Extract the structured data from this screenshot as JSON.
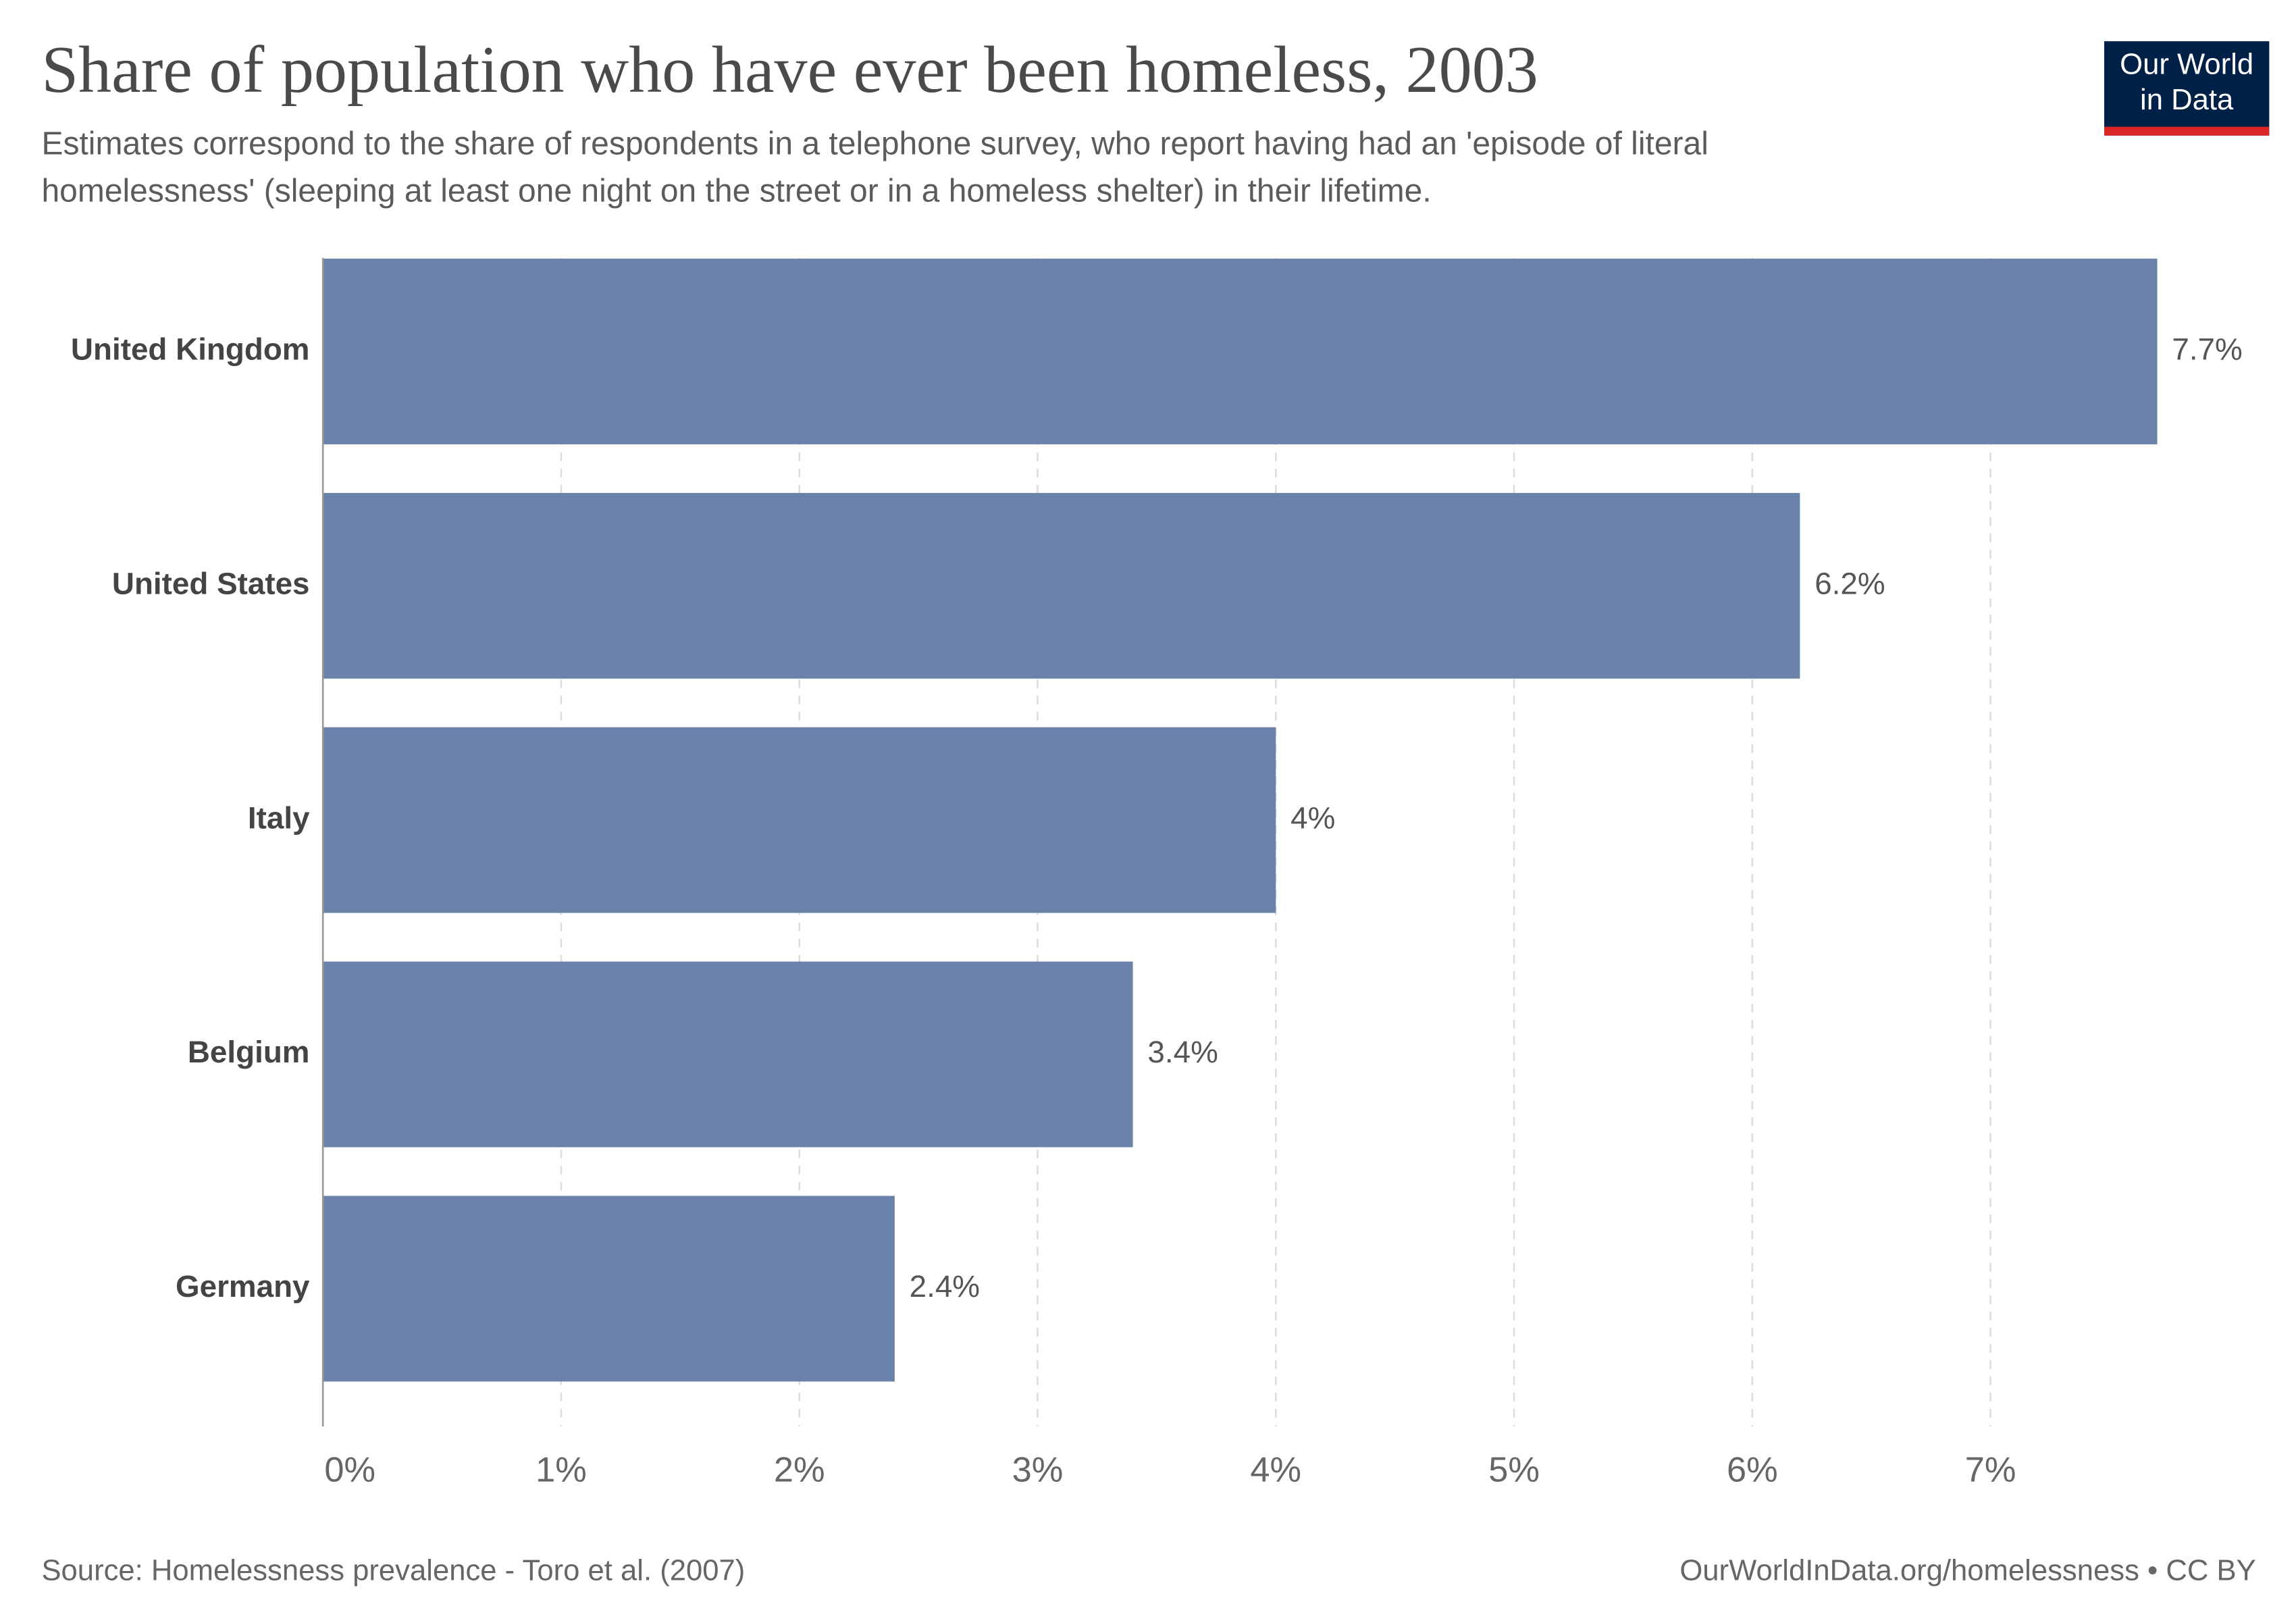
{
  "chart_data": {
    "type": "bar",
    "orientation": "horizontal",
    "title": "Share of population who have ever been homeless, 2003",
    "subtitle": [
      "Estimates correspond to the share of respondents in a telephone survey, who report having had an 'episode of literal",
      "homelessness' (sleeping at least one night on the street or in a homeless shelter) in their lifetime."
    ],
    "categories": [
      "United Kingdom",
      "United States",
      "Italy",
      "Belgium",
      "Germany"
    ],
    "values": [
      7.7,
      6.2,
      4,
      3.4,
      2.4
    ],
    "value_labels": [
      "7.7%",
      "6.2%",
      "4%",
      "3.4%",
      "2.4%"
    ],
    "color": "#6a81aa",
    "xlim": [
      0,
      7.7
    ],
    "xticks": [
      {
        "value": 0,
        "label": "0%"
      },
      {
        "value": 1,
        "label": "1%"
      },
      {
        "value": 2,
        "label": "2%"
      },
      {
        "value": 3,
        "label": "3%"
      },
      {
        "value": 4,
        "label": "4%"
      },
      {
        "value": 5,
        "label": "5%"
      },
      {
        "value": 6,
        "label": "6%"
      },
      {
        "value": 7,
        "label": "7%"
      }
    ],
    "grid": true,
    "source": "Source: Homelessness prevalence - Toro et al. (2007)",
    "credit": "OurWorldInData.org/homelessness • CC BY",
    "logo": [
      "Our World",
      "in Data"
    ]
  }
}
